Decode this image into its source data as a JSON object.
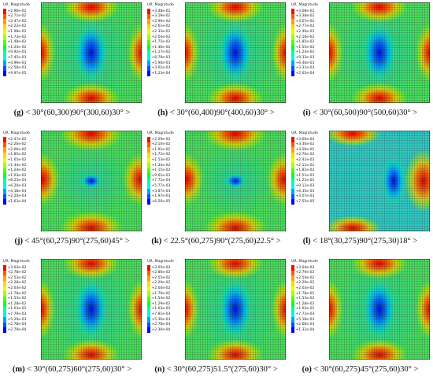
{
  "legend_title": "UR, Magnitude",
  "legend_colors": [
    "#ff0000",
    "#ff5a00",
    "#ffa000",
    "#ffd800",
    "#e0ff00",
    "#a0ff00",
    "#4cff00",
    "#00ff32",
    "#00ffa0",
    "#00f0ff",
    "#00a0ff",
    "#0050ff",
    "#0000ff"
  ],
  "panels": [
    {
      "label": "(g)",
      "caption": "< 30°(60,300)90°(300,60)30° >",
      "legend_values": [
        "+2.96e-02",
        "+2.71e-02",
        "+2.47e-02",
        "+2.22e-02",
        "+1.98e-02",
        "+1.73e-02",
        "+1.48e-02",
        "+1.24e-02",
        "+9.92e-03",
        "+7.45e-03",
        "+4.99e-03",
        "+2.56e-03",
        "+9.97e-05"
      ]
    },
    {
      "label": "(h)",
      "caption": "< 30°(60,400)90°(400,60)30° >",
      "legend_values": [
        "+3.48e-02",
        "+3.19e-02",
        "+2.90e-02",
        "+2.61e-02",
        "+2.33e-02",
        "+2.04e-02",
        "+1.75e-02",
        "+1.46e-02",
        "+1.17e-02",
        "+8.79e-03",
        "+5.90e-03",
        "+3.01e-03",
        "+1.23e-04"
      ]
    },
    {
      "label": "(i)",
      "caption": "< 30°(60,500)90°(500,60)30° >",
      "legend_values": [
        "+3.68e-02",
        "+3.38e-02",
        "+3.07e-02",
        "+2.77e-02",
        "+2.46e-02",
        "+2.16e-02",
        "+1.85e-02",
        "+1.55e-02",
        "+1.24e-02",
        "+9.33e-03",
        "+6.40e-03",
        "+3.31e-03",
        "+2.65e-04"
      ]
    },
    {
      "label": "(j)",
      "caption": "< 45°(60,275)90°(275,60)45° >",
      "legend_values": [
        "+2.47e-02",
        "+2.26e-02",
        "+2.06e-02",
        "+1.85e-02",
        "+1.65e-02",
        "+1.44e-02",
        "+1.24e-02",
        "+1.03e-02",
        "+8.25e-03",
        "+6.20e-03",
        "+4.18e-03",
        "+2.20e-03",
        "+1.63e-04"
      ]
    },
    {
      "label": "(k)",
      "caption": "< 22.5°(60,275)90°(275,60)22.5° >",
      "legend_values": [
        "+2.29e-02",
        "+2.10e-02",
        "+1.91e-02",
        "+1.72e-02",
        "+1.53e-02",
        "+1.34e-02",
        "+1.15e-02",
        "+9.61e-03",
        "+7.71e-03",
        "+5.77e-03",
        "+3.87e-03",
        "+1.97e-03",
        "+6.56e-05"
      ]
    },
    {
      "label": "(l)",
      "caption": "< 18°(30,275)90°(275,30)18° >",
      "legend_values": [
        "+3.60e-02",
        "+3.30e-02",
        "+3.00e-02",
        "+2.70e-02",
        "+2.41e-02",
        "+2.11e-02",
        "+1.81e-02",
        "+1.51e-02",
        "+1.21e-02",
        "+9.11e-03",
        "+6.35e-03",
        "+3.07e-03",
        "+7.55e-05"
      ]
    },
    {
      "label": "(m)",
      "caption": "< 30°(60,275)60°(275,60)30° >",
      "legend_values": [
        "+3.03e-02",
        "+2.78e-02",
        "+2.53e-02",
        "+2.28e-02",
        "+2.03e-02",
        "+1.78e-02",
        "+1.53e-02",
        "+1.28e-02",
        "+1.03e-02",
        "+7.79e-03",
        "+5.29e-03",
        "+2.78e-03",
        "+2.79e-04"
      ]
    },
    {
      "label": "(n)",
      "caption": "< 30°(60,275)51.5°(275,60)30° >",
      "legend_values": [
        "+3.05e-02",
        "+2.80e-02",
        "+2.55e-02",
        "+2.29e-02",
        "+2.04e-02",
        "+1.79e-02",
        "+1.54e-02",
        "+1.29e-02",
        "+1.03e-02",
        "+7.81e-03",
        "+5.30e-03",
        "+2.78e-03",
        "+2.30e-04"
      ]
    },
    {
      "label": "(o)",
      "caption": "< 30°(60,275)45°(275,60)30° >",
      "legend_values": [
        "+3.04e-02",
        "+2.79e-02",
        "+2.54e-02",
        "+2.29e-02",
        "+2.03e-02",
        "+1.78e-02",
        "+1.53e-02",
        "+1.28e-02",
        "+1.03e-02",
        "+7.71e-03",
        "+5.18e-03",
        "+2.66e-03",
        "+1.31e-04"
      ]
    }
  ]
}
